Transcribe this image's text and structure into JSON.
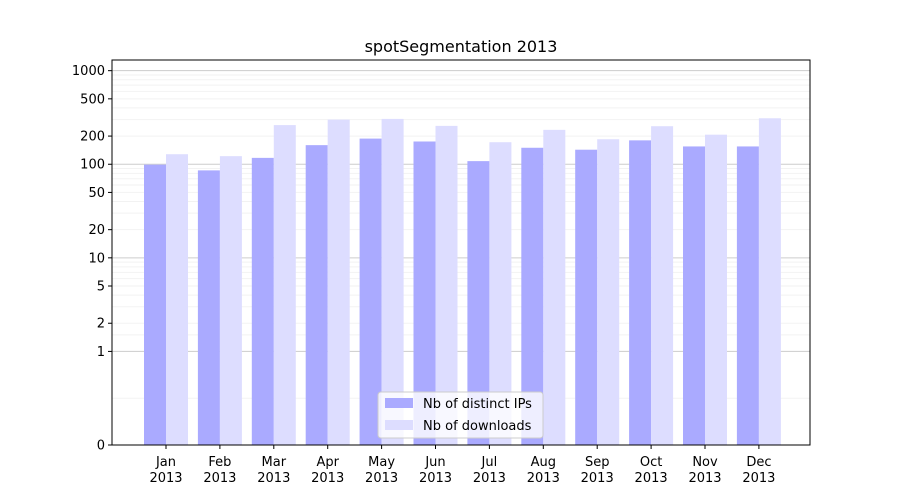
{
  "chart_data": {
    "type": "bar",
    "title": "spotSegmentation 2013",
    "xlabel": "",
    "ylabel": "",
    "scale": "symlog",
    "ylim": [
      0,
      1300
    ],
    "yticks": [
      0,
      1,
      2,
      5,
      10,
      20,
      50,
      100,
      200,
      500,
      1000
    ],
    "grid": true,
    "legend_position": "bottom-center",
    "categories": [
      "Jan\n2013",
      "Feb\n2013",
      "Mar\n2013",
      "Apr\n2013",
      "May\n2013",
      "Jun\n2013",
      "Jul\n2013",
      "Aug\n2013",
      "Sep\n2013",
      "Oct\n2013",
      "Nov\n2013",
      "Dec\n2013"
    ],
    "series": [
      {
        "name": "Nb of distinct IPs",
        "color": "#aaaaff",
        "values": [
          99,
          86,
          117,
          160,
          188,
          175,
          108,
          150,
          143,
          180,
          155,
          155
        ]
      },
      {
        "name": "Nb of downloads",
        "color": "#ddddff",
        "values": [
          128,
          122,
          262,
          300,
          305,
          257,
          172,
          233,
          185,
          255,
          207,
          310
        ]
      }
    ]
  }
}
